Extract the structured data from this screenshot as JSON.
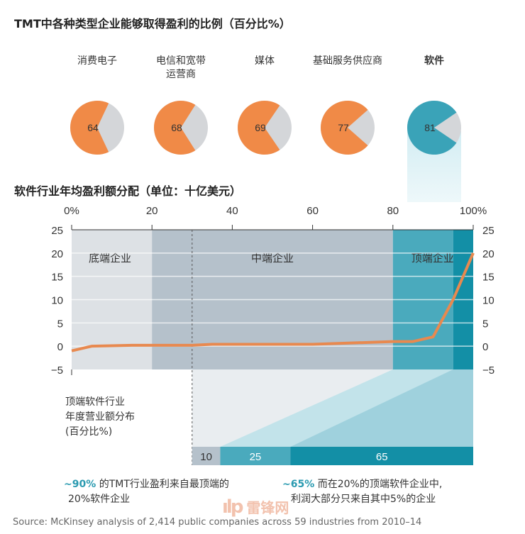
{
  "title": "TMT中各种类型企业能够取得盈利的比例（百分比%）",
  "pies": [
    {
      "label": "消费电子",
      "value": 64,
      "color": "#f08a47"
    },
    {
      "label": "电信和宽带运营商",
      "value": 68,
      "color": "#f08a47"
    },
    {
      "label": "媒体",
      "value": 69,
      "color": "#f08a47"
    },
    {
      "label": "基础服务供应商",
      "value": 77,
      "color": "#f08a47"
    },
    {
      "label": "软件",
      "value": 81,
      "color": "#3aa3b8"
    }
  ],
  "chart_data": {
    "type": "line",
    "title": "软件行业年均盈利额分配（单位：十亿美元）",
    "x_ticks": [
      "0%",
      "20",
      "40",
      "60",
      "80",
      "100%"
    ],
    "y_ticks": [
      "25",
      "20",
      "15",
      "10",
      "5",
      "0",
      "−5"
    ],
    "xlim": [
      0,
      100
    ],
    "ylim": [
      -5,
      25
    ],
    "x": [
      0,
      5,
      15,
      30,
      35,
      60,
      80,
      85,
      90,
      95,
      100
    ],
    "y": [
      -1,
      0,
      0.2,
      0.2,
      0.4,
      0.4,
      1,
      1,
      2,
      10,
      20
    ],
    "line_color": "#e8894f",
    "bands": [
      {
        "from": 0,
        "to": 20,
        "label": "底端企业",
        "color": "#dde1e5"
      },
      {
        "from": 20,
        "to": 80,
        "label": "中端企业",
        "color": "#b5c1cb"
      },
      {
        "from": 80,
        "to": 95,
        "label": "顶端企业",
        "color": "#4aaabd"
      },
      {
        "from": 95,
        "to": 100,
        "label": "",
        "color": "#138fa6"
      }
    ],
    "dashed_at": 30,
    "revenue_label": "顶端软件行业年度营业额分布(百分比%)",
    "revenue_label_lines": [
      "顶端软件行业",
      "年度营业额分布",
      "(百分比%)"
    ],
    "revenue_split": [
      {
        "value": 10,
        "color": "#b5c1cb",
        "text_color": "#333"
      },
      {
        "value": 25,
        "color": "#4aaabd",
        "text_color": "#fff"
      },
      {
        "value": 65,
        "color": "#138fa6",
        "text_color": "#fff"
      }
    ]
  },
  "notes": [
    {
      "highlight": "~90%",
      "text1": " 的TMT行业盈利来自最顶端的",
      "text2": "20%软件企业"
    },
    {
      "highlight": "~65%",
      "text1": " 而在20%的顶端软件企业中,",
      "text2": "利润大部分只来自其中5%的企业"
    }
  ],
  "watermark": "雷锋网",
  "source": "Source: McKinsey analysis of 2,414 public companies across 59 industries from 2010–14"
}
